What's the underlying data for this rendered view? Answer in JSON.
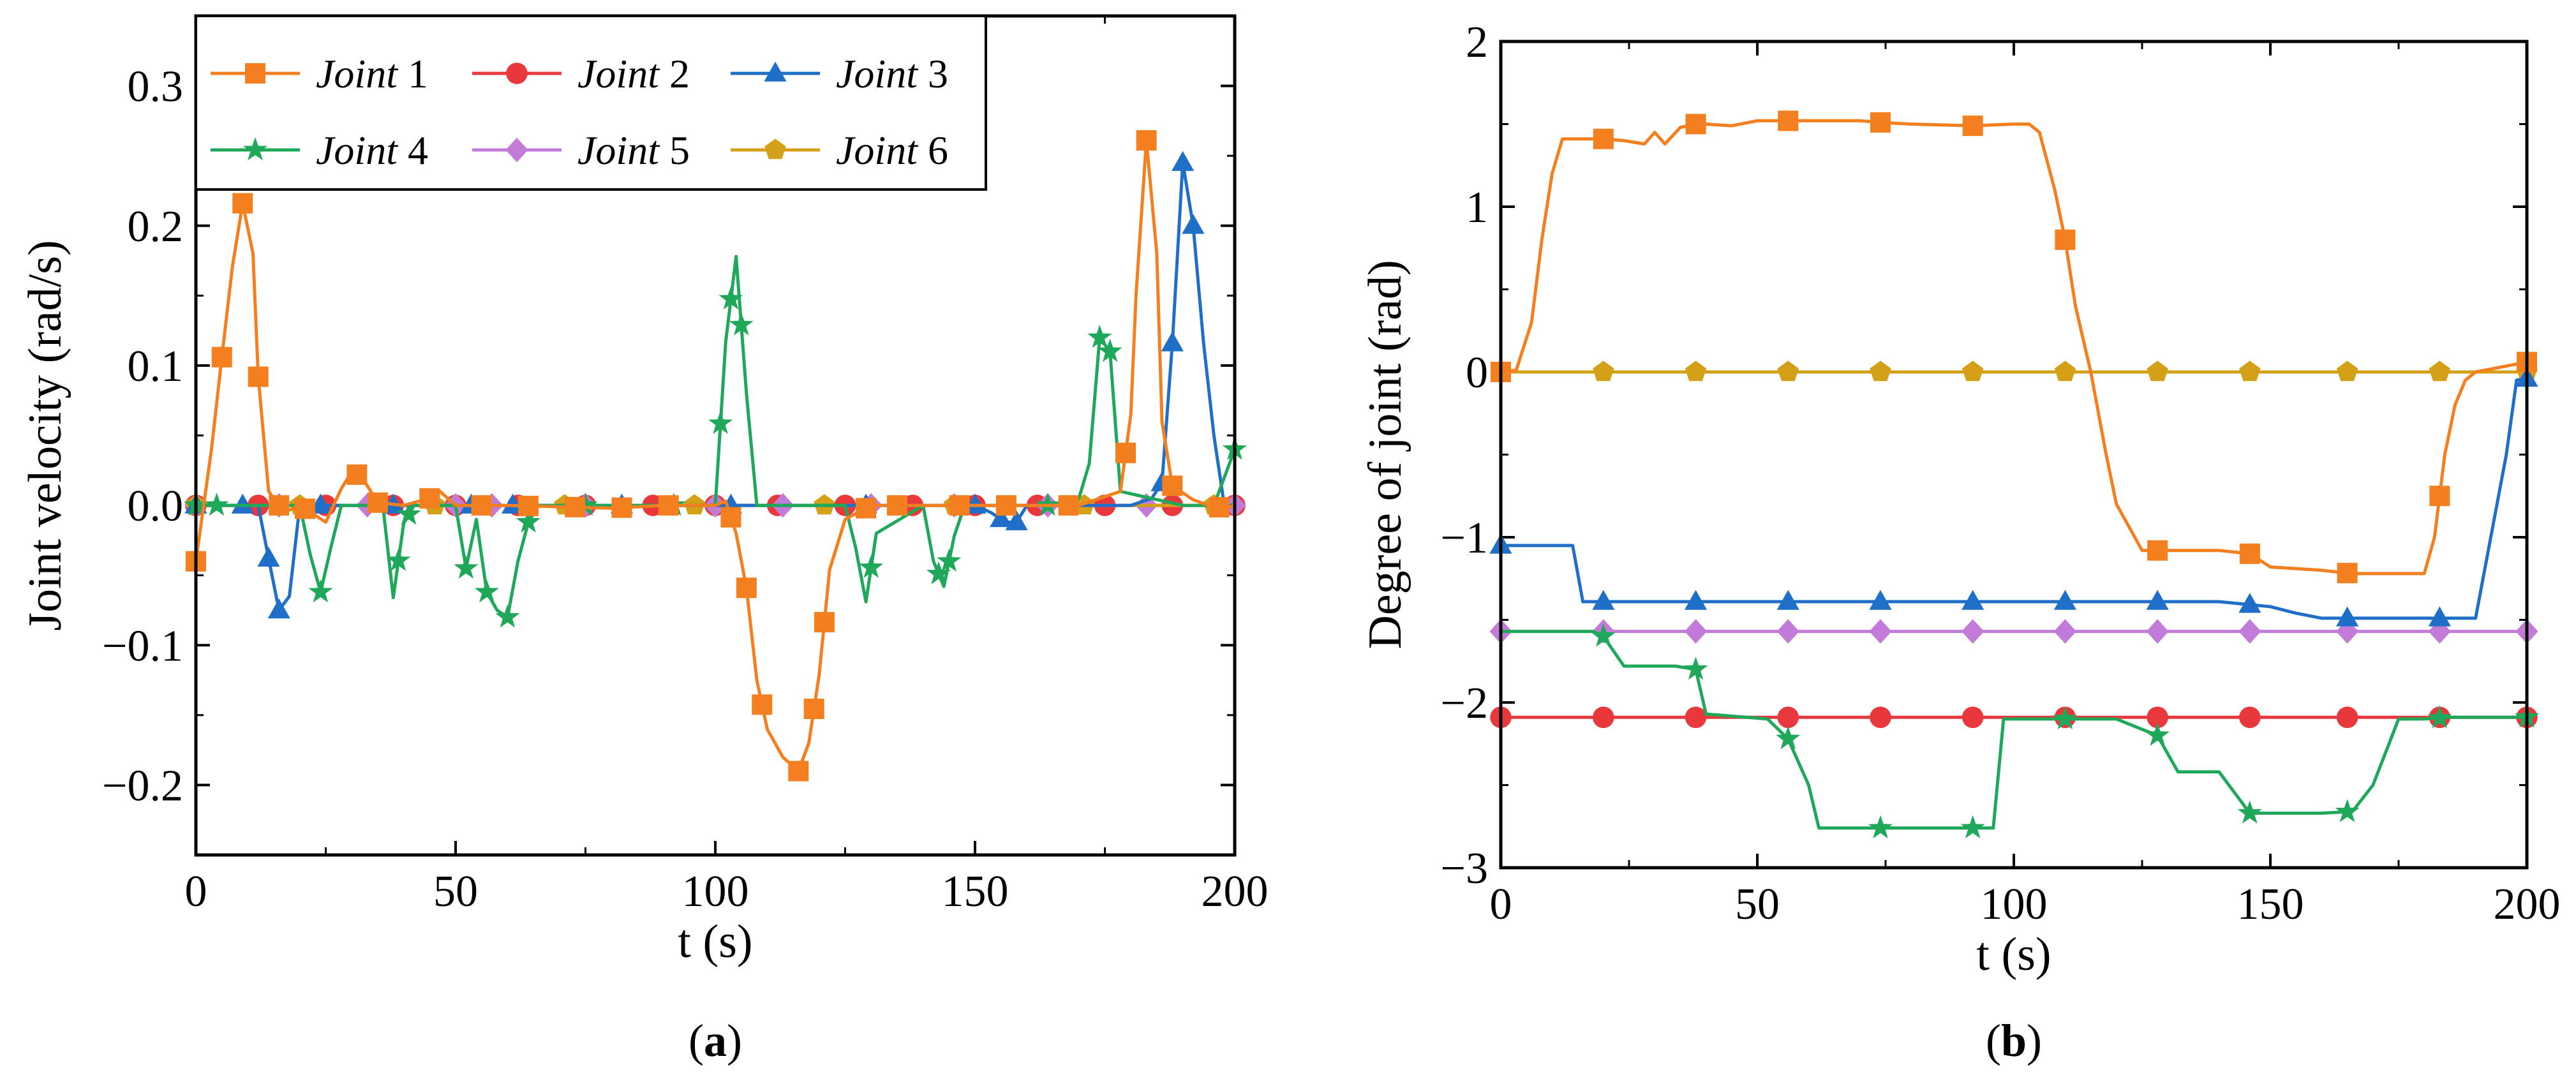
{
  "colors": {
    "joint1": "#F47F1F",
    "joint2": "#E8383B",
    "joint3": "#1F6FC9",
    "joint4": "#1FA85A",
    "joint5": "#C27BD8",
    "joint6": "#D4A017"
  },
  "chart_data": [
    {
      "type": "line",
      "panel_label": "a",
      "title": "",
      "xlabel": "t (s)",
      "ylabel": "Joint velocity (rad/s)",
      "xlim": [
        0,
        200
      ],
      "ylim": [
        -0.25,
        0.35
      ],
      "x_ticks": [
        0,
        50,
        100,
        150,
        200
      ],
      "x_tick_labels": [
        "0",
        "50",
        "100",
        "150",
        "200"
      ],
      "y_ticks": [
        -0.2,
        -0.1,
        0.0,
        0.1,
        0.2,
        0.3
      ],
      "y_tick_labels": [
        "−0.2",
        "−0.1",
        "0.0",
        "0.1",
        "0.2",
        "0.3"
      ],
      "legend": {
        "placement": "top-left",
        "entries": [
          {
            "label": "Joint",
            "number": "1",
            "series": "Joint 1"
          },
          {
            "label": "Joint",
            "number": "2",
            "series": "Joint 2"
          },
          {
            "label": "Joint",
            "number": "3",
            "series": "Joint 3"
          },
          {
            "label": "Joint",
            "number": "4",
            "series": "Joint 4"
          },
          {
            "label": "Joint",
            "number": "5",
            "series": "Joint 5"
          },
          {
            "label": "Joint",
            "number": "6",
            "series": "Joint 6"
          }
        ]
      },
      "series": [
        {
          "name": "Joint 1",
          "marker": "square",
          "color_key": "joint1",
          "x": [
            0,
            3,
            5,
            7,
            9,
            11,
            12,
            14,
            17,
            20,
            25,
            28,
            30,
            32,
            35,
            40,
            45,
            47,
            50,
            60,
            80,
            90,
            100,
            102,
            104,
            106,
            108,
            110,
            113,
            116,
            118,
            120,
            122,
            125,
            130,
            150,
            170,
            178,
            180,
            181,
            183,
            185,
            186,
            188,
            192,
            195,
            198,
            200
          ],
          "y": [
            -0.04,
            0.04,
            0.106,
            0.17,
            0.216,
            0.18,
            0.092,
            0.01,
            -0.005,
            0.0,
            -0.012,
            0.012,
            0.024,
            0.02,
            0.002,
            0.0,
            0.005,
            0.01,
            0.0,
            0.0,
            -0.002,
            0.0,
            0.0,
            0.003,
            -0.02,
            -0.059,
            -0.125,
            -0.16,
            -0.18,
            -0.19,
            -0.17,
            -0.121,
            -0.046,
            -0.01,
            0.0,
            0.0,
            0.0,
            0.01,
            0.065,
            0.15,
            0.261,
            0.18,
            0.06,
            0.014,
            0.004,
            0.0,
            -0.002,
            0.0
          ]
        },
        {
          "name": "Joint 2",
          "marker": "circle",
          "color_key": "joint2",
          "x": [
            0,
            200
          ],
          "y": [
            0.0,
            0.0
          ]
        },
        {
          "name": "Joint 3",
          "marker": "triangle",
          "color_key": "joint3",
          "x": [
            0,
            12,
            14,
            16,
            18,
            20,
            150,
            153,
            156,
            158,
            160,
            180,
            184,
            186,
            188,
            190,
            192,
            194,
            196,
            198,
            200
          ],
          "y": [
            0.0,
            0.0,
            -0.038,
            -0.075,
            -0.065,
            0.0,
            0.0,
            -0.005,
            -0.012,
            -0.012,
            0.0,
            0.0,
            0.005,
            0.016,
            0.116,
            0.245,
            0.2,
            0.116,
            0.05,
            0.0,
            0.0
          ]
        },
        {
          "name": "Joint 4",
          "marker": "star",
          "color_key": "joint4",
          "x": [
            0,
            20,
            22,
            24,
            26,
            28,
            36,
            38,
            40,
            42,
            44,
            50,
            52,
            54,
            56,
            58,
            60,
            62,
            64,
            66,
            100,
            102,
            104,
            106,
            108,
            125,
            127,
            129,
            131,
            140,
            142,
            144,
            146,
            148,
            165,
            170,
            172,
            174,
            176,
            178,
            190,
            196,
            198,
            200
          ],
          "y": [
            0.0,
            0.0,
            -0.035,
            -0.062,
            -0.03,
            0.0,
            0.0,
            -0.066,
            -0.013,
            0.0,
            0.0,
            0.0,
            -0.045,
            -0.01,
            -0.062,
            -0.075,
            -0.08,
            -0.04,
            -0.012,
            0.0,
            0.0,
            0.117,
            0.178,
            0.08,
            0.0,
            0.0,
            -0.03,
            -0.069,
            -0.02,
            0.0,
            -0.04,
            -0.058,
            -0.022,
            0.0,
            0.0,
            0.005,
            0.03,
            0.12,
            0.11,
            0.01,
            0.0,
            0.0,
            0.02,
            0.04
          ]
        },
        {
          "name": "Joint 5",
          "marker": "diamond",
          "color_key": "joint5",
          "x": [
            0,
            200
          ],
          "y": [
            0.0,
            0.0
          ]
        },
        {
          "name": "Joint 6",
          "marker": "pentagon",
          "color_key": "joint6",
          "x": [
            0,
            200
          ],
          "y": [
            0.0,
            0.0
          ]
        }
      ]
    },
    {
      "type": "line",
      "panel_label": "b",
      "title": "",
      "xlabel": "t (s)",
      "ylabel": "Degree of joint (rad)",
      "xlim": [
        0,
        200
      ],
      "ylim": [
        -3,
        2
      ],
      "x_ticks": [
        0,
        50,
        100,
        150,
        200
      ],
      "x_tick_labels": [
        "0",
        "50",
        "100",
        "150",
        "200"
      ],
      "y_ticks": [
        -3,
        -2,
        -1,
        0,
        1,
        2
      ],
      "y_tick_labels": [
        "−3",
        "−2",
        "−1",
        "0",
        "1",
        "2"
      ],
      "series": [
        {
          "name": "Joint 1",
          "marker": "square",
          "color_key": "joint1",
          "x": [
            0,
            3,
            6,
            8,
            10,
            12,
            20,
            24,
            28,
            30,
            32,
            35,
            38,
            40,
            45,
            50,
            56,
            70,
            74,
            80,
            92,
            100,
            103,
            105,
            108,
            110,
            112,
            115,
            118,
            120,
            125,
            128,
            140,
            146,
            150,
            160,
            166,
            170,
            175,
            178,
            180,
            182,
            184,
            186,
            188,
            190,
            200
          ],
          "y": [
            0.0,
            0.01,
            0.3,
            0.8,
            1.2,
            1.41,
            1.41,
            1.4,
            1.38,
            1.45,
            1.38,
            1.48,
            1.5,
            1.5,
            1.49,
            1.52,
            1.52,
            1.52,
            1.51,
            1.5,
            1.49,
            1.5,
            1.5,
            1.45,
            1.1,
            0.8,
            0.4,
            0.0,
            -0.5,
            -0.8,
            -1.08,
            -1.08,
            -1.08,
            -1.1,
            -1.18,
            -1.2,
            -1.22,
            -1.22,
            -1.22,
            -1.22,
            -1.22,
            -1.0,
            -0.5,
            -0.2,
            -0.05,
            0.0,
            0.06
          ]
        },
        {
          "name": "Joint 2",
          "marker": "circle",
          "color_key": "joint2",
          "x": [
            0,
            200
          ],
          "y": [
            -2.09,
            -2.09
          ]
        },
        {
          "name": "Joint 3",
          "marker": "triangle",
          "color_key": "joint3",
          "x": [
            0,
            14,
            16,
            140,
            150,
            155,
            160,
            184,
            190,
            196,
            198,
            200
          ],
          "y": [
            -1.05,
            -1.05,
            -1.39,
            -1.39,
            -1.42,
            -1.46,
            -1.49,
            -1.49,
            -1.49,
            -0.5,
            -0.05,
            -0.04
          ]
        },
        {
          "name": "Joint 4",
          "marker": "star",
          "color_key": "joint4",
          "x": [
            0,
            18,
            20,
            24,
            34,
            38,
            40,
            52,
            56,
            60,
            62,
            92,
            96,
            98,
            112,
            120,
            128,
            132,
            140,
            146,
            150,
            160,
            166,
            170,
            175,
            180,
            185,
            200
          ],
          "y": [
            -1.57,
            -1.57,
            -1.6,
            -1.78,
            -1.78,
            -1.8,
            -2.07,
            -2.1,
            -2.22,
            -2.5,
            -2.76,
            -2.76,
            -2.76,
            -2.1,
            -2.1,
            -2.1,
            -2.2,
            -2.42,
            -2.42,
            -2.67,
            -2.67,
            -2.67,
            -2.66,
            -2.5,
            -2.1,
            -2.1,
            -2.09,
            -2.09
          ]
        },
        {
          "name": "Joint 5",
          "marker": "diamond",
          "color_key": "joint5",
          "x": [
            0,
            200
          ],
          "y": [
            -1.57,
            -1.57
          ]
        },
        {
          "name": "Joint 6",
          "marker": "pentagon",
          "color_key": "joint6",
          "x": [
            0,
            200
          ],
          "y": [
            0.0,
            0.0
          ]
        }
      ]
    }
  ]
}
